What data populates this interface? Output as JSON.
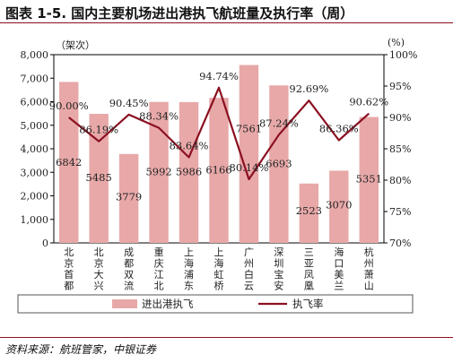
{
  "title": "图表 1-5. 国内主要机场进出港执飞航班量及执行率（周）",
  "source": "资料来源：航班管家，中银证券",
  "chart_data": {
    "type": "bar+line",
    "left_unit": "（架次）",
    "right_unit": "(%)",
    "categories": [
      "北京首都",
      "北京大兴",
      "成都双流",
      "重庆江北",
      "上海浦东",
      "上海虹桥",
      "广州白云",
      "深圳宝安",
      "三亚凤凰",
      "海口美兰",
      "杭州萧山"
    ],
    "y_left": {
      "min": 0,
      "max": 8000,
      "ticks": [
        "0",
        "1,000",
        "2,000",
        "3,000",
        "4,000",
        "5,000",
        "6,000",
        "7,000",
        "8,000"
      ]
    },
    "y_right": {
      "min": 70,
      "max": 100,
      "ticks": [
        "70%",
        "75%",
        "80%",
        "85%",
        "90%",
        "95%",
        "100%"
      ]
    },
    "series": [
      {
        "name": "进出港执飞",
        "axis": "left",
        "kind": "bar",
        "color": "#e8a8a8",
        "values": [
          6842,
          5485,
          3779,
          5992,
          5986,
          6166,
          7561,
          6693,
          2523,
          3070,
          5351
        ],
        "labels": [
          "6842",
          "5485",
          "3779",
          "5992",
          "5986",
          "6166",
          "7561",
          "6693",
          "2523",
          "3070",
          "5351"
        ]
      },
      {
        "name": "执飞率",
        "axis": "right",
        "kind": "line",
        "color": "#8b1020",
        "values": [
          90.0,
          86.19,
          90.45,
          88.34,
          83.64,
          94.74,
          80.14,
          87.24,
          92.69,
          86.36,
          90.62
        ],
        "labels": [
          "90.00%",
          "86.19%",
          "90.45%",
          "88.34%",
          "83.64%",
          "94.74%",
          "80.14%",
          "87.24%",
          "92.69%",
          "86.36%",
          "90.62%"
        ]
      }
    ],
    "legend_position": "bottom"
  }
}
